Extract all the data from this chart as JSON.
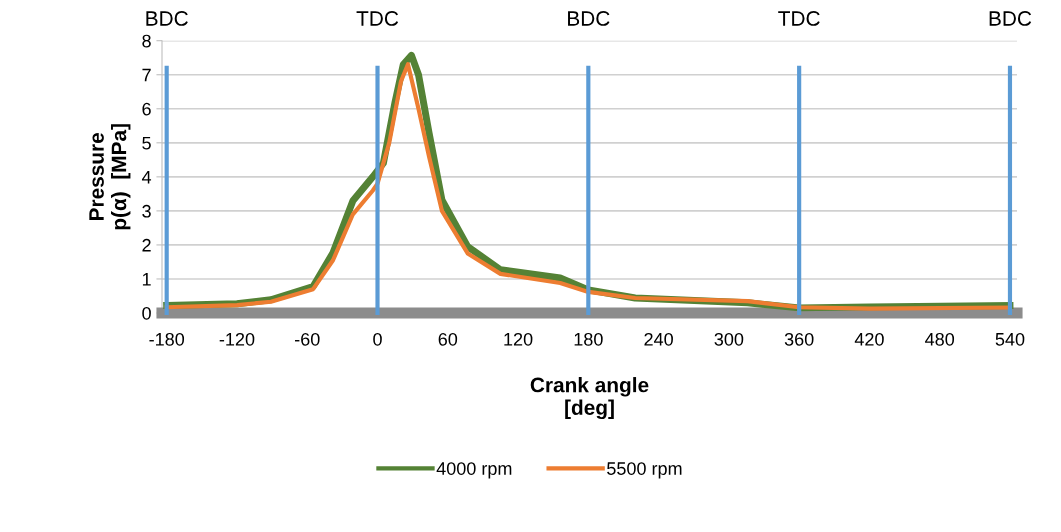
{
  "chart_data": {
    "type": "line",
    "xlabel": "Crank angle\n[deg]",
    "ylabel": "Pressure\np(α)  [MPa]",
    "xlim": [
      -184,
      546
    ],
    "xticks": [
      -180,
      -120,
      -60,
      0,
      60,
      120,
      180,
      240,
      300,
      360,
      420,
      480,
      540
    ],
    "ylim": [
      0,
      8
    ],
    "yticks": [
      0,
      1,
      2,
      3,
      4,
      5,
      6,
      7,
      8
    ],
    "grid": "y",
    "legend": "bottom",
    "marker": "none",
    "line_style": "solid",
    "series": [
      {
        "name": "4000 rpm",
        "color": "#548235",
        "x": [
          -180,
          -120,
          -91,
          -55,
          -38,
          -21,
          -4,
          5,
          15,
          22,
          29,
          35,
          44,
          55,
          77,
          105,
          156,
          180,
          220,
          316,
          360,
          420,
          540
        ],
        "values": [
          0.22,
          0.27,
          0.39,
          0.78,
          1.77,
          3.3,
          4.0,
          4.4,
          6.2,
          7.3,
          7.57,
          7.0,
          5.29,
          3.32,
          1.95,
          1.27,
          1.03,
          0.68,
          0.44,
          0.3,
          0.15,
          0.18,
          0.22
        ]
      },
      {
        "name": "5500 rpm",
        "color": "#ed7d31",
        "x": [
          -180,
          -120,
          -91,
          -55,
          -38,
          -21,
          -4,
          0,
          10,
          20,
          26,
          35,
          44,
          55,
          77,
          105,
          156,
          180,
          220,
          316,
          360,
          420,
          540
        ],
        "values": [
          0.17,
          0.23,
          0.33,
          0.7,
          1.55,
          2.9,
          3.6,
          3.8,
          5.0,
          6.8,
          7.31,
          6.0,
          4.6,
          3.0,
          1.75,
          1.15,
          0.88,
          0.62,
          0.44,
          0.35,
          0.17,
          0.13,
          0.16
        ]
      }
    ],
    "ref_lines": [
      {
        "axis": "x",
        "value": -180,
        "label": "BDC",
        "color": "#5b9bd5"
      },
      {
        "axis": "x",
        "value": 0,
        "label": "TDC",
        "color": "#5b9bd5"
      },
      {
        "axis": "x",
        "value": 180,
        "label": "BDC",
        "color": "#5b9bd5"
      },
      {
        "axis": "x",
        "value": 360,
        "label": "TDC",
        "color": "#5b9bd5"
      },
      {
        "axis": "x",
        "value": 540,
        "label": "BDC",
        "color": "#5b9bd5"
      }
    ]
  }
}
